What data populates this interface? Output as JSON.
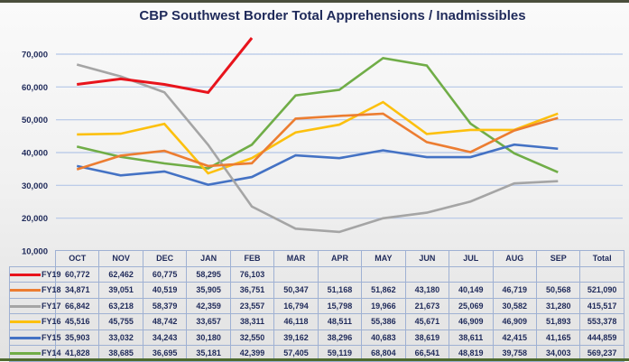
{
  "chart_data": {
    "type": "line",
    "title": "CBP Southwest Border Total Apprehensions / Inadmissibles",
    "xlabel": "",
    "ylabel": "",
    "ylim": [
      10000,
      70000
    ],
    "yticks": [
      "70,000",
      "60,000",
      "50,000",
      "40,000",
      "30,000",
      "20,000",
      "10,000"
    ],
    "ytick_values": [
      70000,
      60000,
      50000,
      40000,
      30000,
      20000,
      10000
    ],
    "grid": true,
    "legend_placement": "table-left",
    "categories": [
      "OCT",
      "NOV",
      "DEC",
      "JAN",
      "FEB",
      "MAR",
      "APR",
      "MAY",
      "JUN",
      "JUL",
      "AUG",
      "SEP"
    ],
    "total_label": "Total",
    "series": [
      {
        "name": "FY19",
        "color": "#e8141c",
        "values": [
          60772,
          62462,
          60775,
          58295,
          76103,
          null,
          null,
          null,
          null,
          null,
          null,
          null
        ],
        "labels": [
          "60,772",
          "62,462",
          "60,775",
          "58,295",
          "76,103",
          "",
          "",
          "",
          "",
          "",
          "",
          ""
        ],
        "total": ""
      },
      {
        "name": "FY18",
        "color": "#ec7d31",
        "values": [
          34871,
          39051,
          40519,
          35905,
          36751,
          50347,
          51168,
          51862,
          43180,
          40149,
          46719,
          50568
        ],
        "labels": [
          "34,871",
          "39,051",
          "40,519",
          "35,905",
          "36,751",
          "50,347",
          "51,168",
          "51,862",
          "43,180",
          "40,149",
          "46,719",
          "50,568"
        ],
        "total": "521,090"
      },
      {
        "name": "FY17",
        "color": "#a5a5a5",
        "values": [
          66842,
          63218,
          58379,
          42359,
          23557,
          16794,
          15798,
          19966,
          21673,
          25069,
          30582,
          31280
        ],
        "labels": [
          "66,842",
          "63,218",
          "58,379",
          "42,359",
          "23,557",
          "16,794",
          "15,798",
          "19,966",
          "21,673",
          "25,069",
          "30,582",
          "31,280"
        ],
        "total": "415,517"
      },
      {
        "name": "FY16",
        "color": "#fcc00e",
        "values": [
          45516,
          45755,
          48742,
          33657,
          38311,
          46118,
          48511,
          55386,
          45671,
          46909,
          46909,
          51893
        ],
        "labels": [
          "45,516",
          "45,755",
          "48,742",
          "33,657",
          "38,311",
          "46,118",
          "48,511",
          "55,386",
          "45,671",
          "46,909",
          "46,909",
          "51,893"
        ],
        "total": "553,378"
      },
      {
        "name": "FY15",
        "color": "#4472c4",
        "values": [
          35903,
          33032,
          34243,
          30180,
          32550,
          39162,
          38296,
          40683,
          38619,
          38611,
          42415,
          41165
        ],
        "labels": [
          "35,903",
          "33,032",
          "34,243",
          "30,180",
          "32,550",
          "39,162",
          "38,296",
          "40,683",
          "38,619",
          "38,611",
          "42,415",
          "41,165"
        ],
        "total": "444,859"
      },
      {
        "name": "FY14",
        "color": "#70ad47",
        "values": [
          41828,
          38685,
          36695,
          35181,
          42399,
          57405,
          59119,
          68804,
          66541,
          48819,
          39758,
          34003
        ],
        "labels": [
          "41,828",
          "38,685",
          "36,695",
          "35,181",
          "42,399",
          "57,405",
          "59,119",
          "68,804",
          "66,541",
          "48,819",
          "39,758",
          "34,003"
        ],
        "total": "569,237"
      }
    ]
  }
}
